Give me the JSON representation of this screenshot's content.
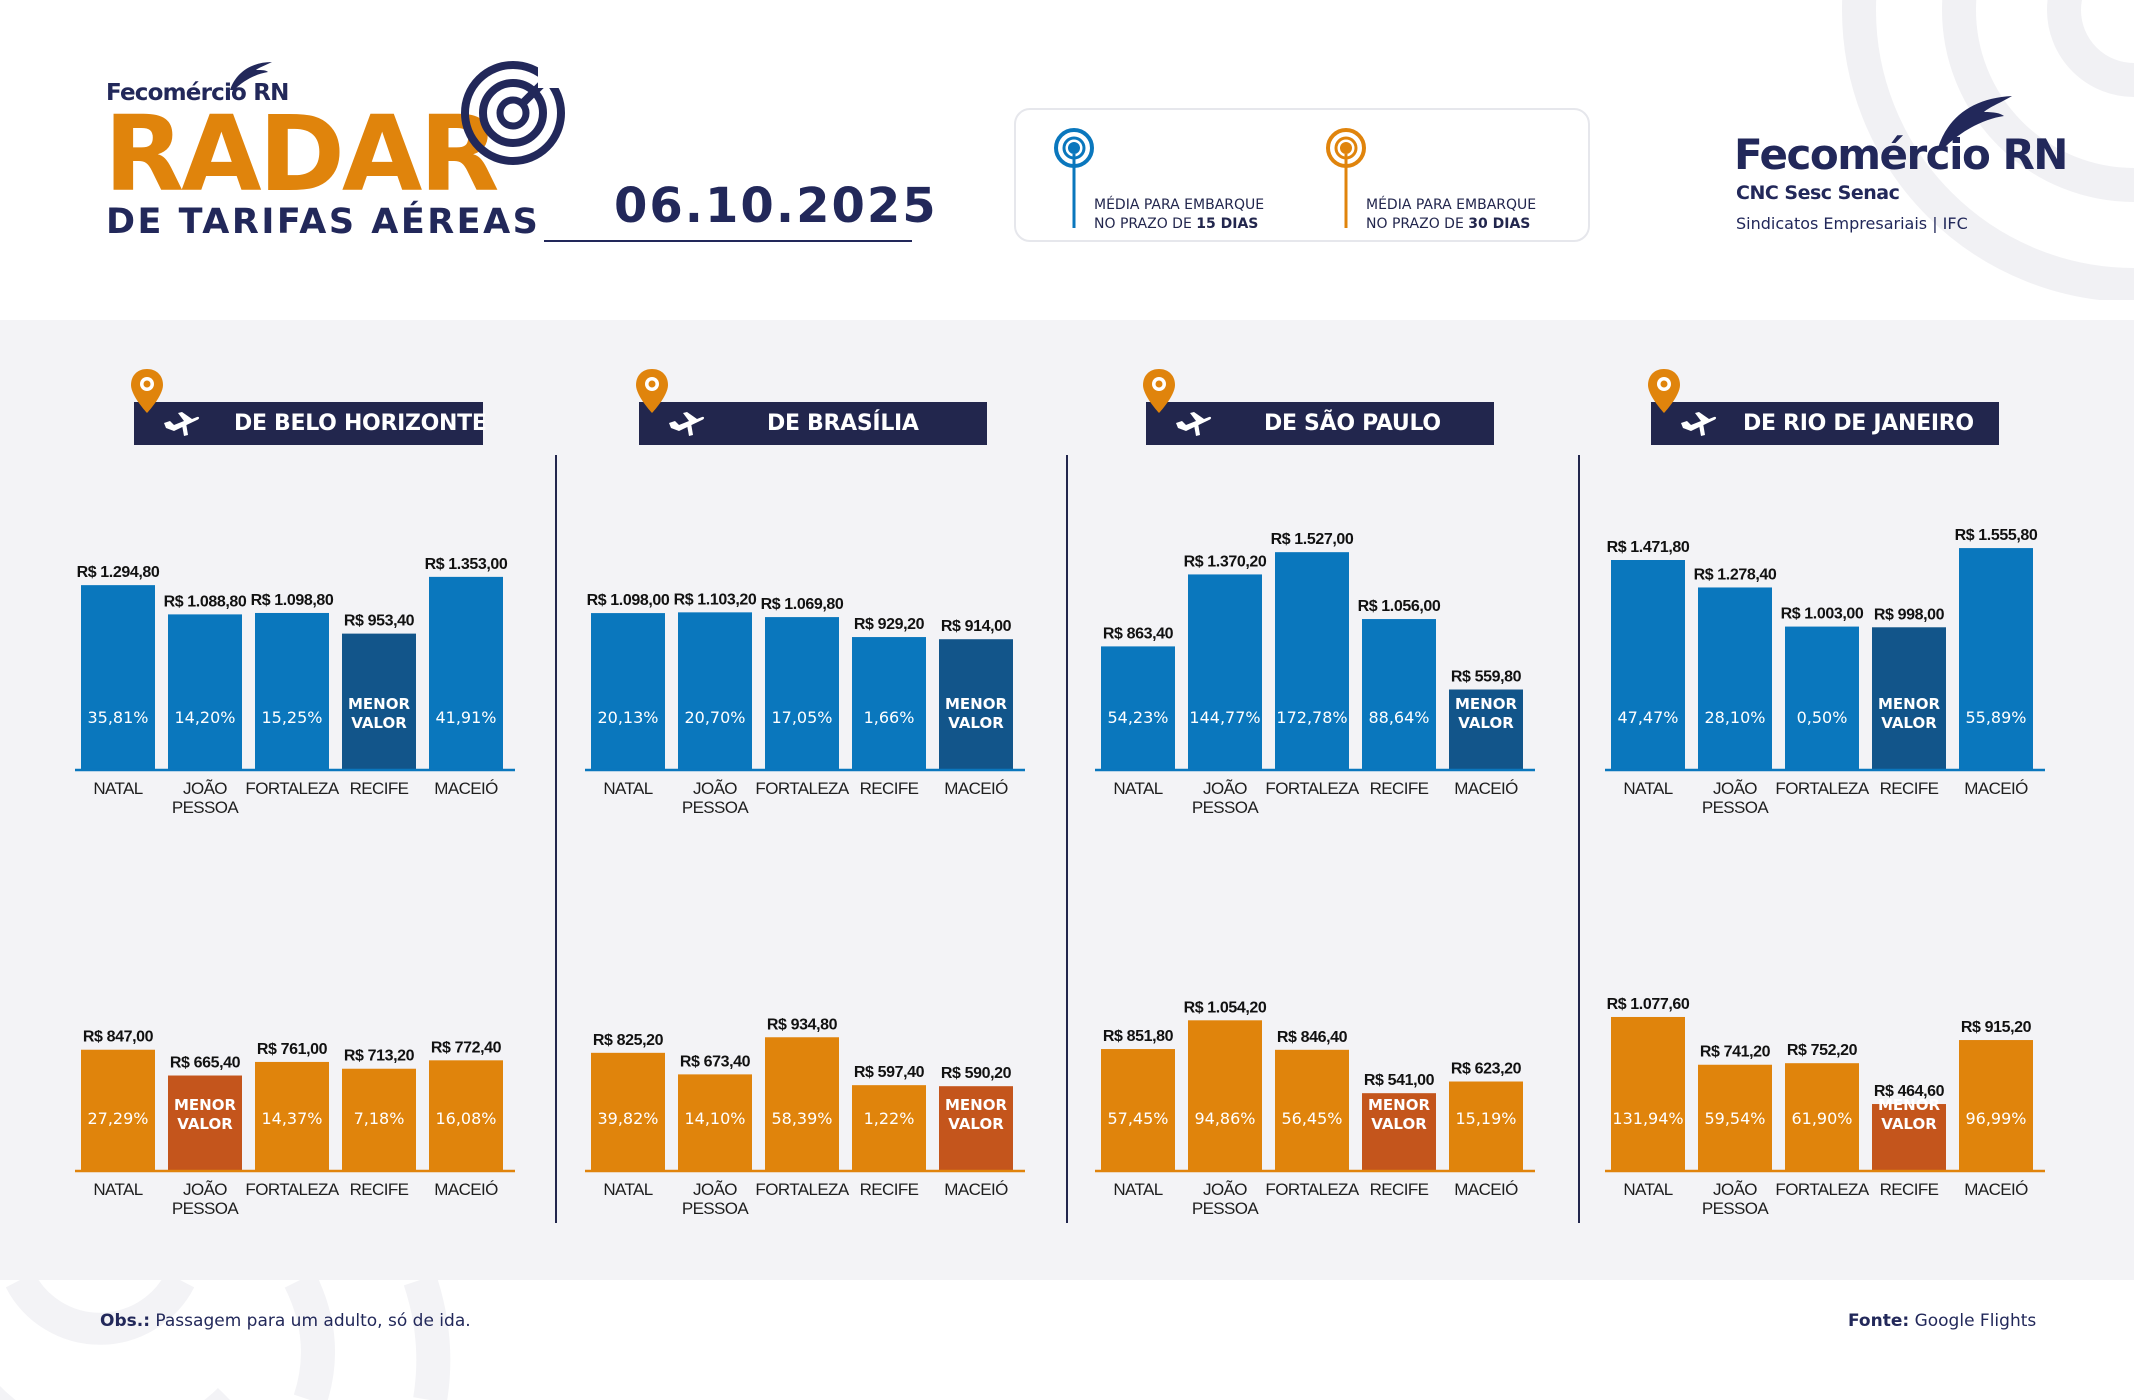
{
  "header": {
    "brand_small": "Fecomércio RN",
    "title": "RADAR",
    "subtitle": "DE TARIFAS AÉREAS",
    "date": "06.10.2025"
  },
  "legend": [
    {
      "line1": "MÉDIA PARA EMBARQUE",
      "line2_prefix": "NO PRAZO DE ",
      "line2_bold": "15 DIAS",
      "color": "#0a77bd",
      "icon": "radar-signal-icon"
    },
    {
      "line1": "MÉDIA PARA EMBARQUE",
      "line2_prefix": "NO PRAZO DE ",
      "line2_bold": "30 DIAS",
      "color": "#e0840c",
      "icon": "radar-signal-icon"
    }
  ],
  "logo_right": {
    "name": "Fecomércio RN",
    "line2": "CNC Sesc Senac",
    "line3": "Sindicatos Empresariais  |  IFC"
  },
  "colors": {
    "navy": "#22264d",
    "blue": "#0a77bd",
    "blue_lowest": "#12558a",
    "orange": "#e0840c",
    "orange_lowest": "#c4551c",
    "panel_bg": "#f3f3f6"
  },
  "menor_valor_label": [
    "MENOR",
    "VALOR"
  ],
  "chart_data": [
    {
      "type": "bar",
      "title": "DE BELO HORIZONTE",
      "categories": [
        "NATAL",
        "JOÃO PESSOA",
        "FORTALEZA",
        "RECIFE",
        "MACEIÓ"
      ],
      "series": [
        {
          "name": "Média para embarque no prazo de 15 dias",
          "values": [
            1294.8,
            1088.8,
            1098.8,
            953.4,
            1353.0
          ],
          "labels": [
            "R$ 1.294,80",
            "R$ 1.088,80",
            "R$ 1.098,80",
            "R$ 953,40",
            "R$ 1.353,00"
          ],
          "pct": [
            "35,81%",
            "14,20%",
            "15,25%",
            null,
            "41,91%"
          ],
          "lowest_index": 3
        },
        {
          "name": "Média para embarque no prazo de 30 dias",
          "values": [
            847.0,
            665.4,
            761.0,
            713.2,
            772.4
          ],
          "labels": [
            "R$ 847,00",
            "R$ 665,40",
            "R$ 761,00",
            "R$ 713,20",
            "R$ 772,40"
          ],
          "pct": [
            "27,29%",
            null,
            "14,37%",
            "7,18%",
            "16,08%"
          ],
          "lowest_index": 1
        }
      ],
      "ylabel": "R$",
      "xlabel": "",
      "ylim": [
        0,
        1600
      ],
      "grid": false
    },
    {
      "type": "bar",
      "title": "DE BRASÍLIA",
      "categories": [
        "NATAL",
        "JOÃO PESSOA",
        "FORTALEZA",
        "RECIFE",
        "MACEIÓ"
      ],
      "series": [
        {
          "name": "Média para embarque no prazo de 15 dias",
          "values": [
            1098.0,
            1103.2,
            1069.8,
            929.2,
            914.0
          ],
          "labels": [
            "R$ 1.098,00",
            "R$ 1.103,20",
            "R$ 1.069,80",
            "R$ 929,20",
            "R$ 914,00"
          ],
          "pct": [
            "20,13%",
            "20,70%",
            "17,05%",
            "1,66%",
            null
          ],
          "lowest_index": 4
        },
        {
          "name": "Média para embarque no prazo de 30 dias",
          "values": [
            825.2,
            673.4,
            934.8,
            597.4,
            590.2
          ],
          "labels": [
            "R$ 825,20",
            "R$ 673,40",
            "R$ 934,80",
            "R$ 597,40",
            "R$ 590,20"
          ],
          "pct": [
            "39,82%",
            "14,10%",
            "58,39%",
            "1,22%",
            null
          ],
          "lowest_index": 4
        }
      ],
      "ylabel": "R$",
      "xlabel": "",
      "ylim": [
        0,
        1600
      ],
      "grid": false
    },
    {
      "type": "bar",
      "title": "DE SÃO PAULO",
      "categories": [
        "NATAL",
        "JOÃO PESSOA",
        "FORTALEZA",
        "RECIFE",
        "MACEIÓ"
      ],
      "series": [
        {
          "name": "Média para embarque no prazo de 15 dias",
          "values": [
            863.4,
            1370.2,
            1527.0,
            1056.0,
            559.8
          ],
          "labels": [
            "R$ 863,40",
            "R$ 1.370,20",
            "R$ 1.527,00",
            "R$ 1.056,00",
            "R$ 559,80"
          ],
          "pct": [
            "54,23%",
            "144,77%",
            "172,78%",
            "88,64%",
            null
          ],
          "lowest_index": 4
        },
        {
          "name": "Média para embarque no prazo de 30 dias",
          "values": [
            851.8,
            1054.2,
            846.4,
            541.0,
            623.2
          ],
          "labels": [
            "R$ 851,80",
            "R$ 1.054,20",
            "R$ 846,40",
            "R$ 541,00",
            "R$ 623,20"
          ],
          "pct": [
            "57,45%",
            "94,86%",
            "56,45%",
            null,
            "15,19%"
          ],
          "lowest_index": 3
        }
      ],
      "ylabel": "R$",
      "xlabel": "",
      "ylim": [
        0,
        1600
      ],
      "grid": false
    },
    {
      "type": "bar",
      "title": "DE RIO DE JANEIRO",
      "categories": [
        "NATAL",
        "JOÃO PESSOA",
        "FORTALEZA",
        "RECIFE",
        "MACEIÓ"
      ],
      "series": [
        {
          "name": "Média para embarque no prazo de 15 dias",
          "values": [
            1471.8,
            1278.4,
            1003.0,
            998.0,
            1555.8
          ],
          "labels": [
            "R$ 1.471,80",
            "R$ 1.278,40",
            "R$ 1.003,00",
            "R$ 998,00",
            "R$ 1.555,80"
          ],
          "pct": [
            "47,47%",
            "28,10%",
            "0,50%",
            null,
            "55,89%"
          ],
          "lowest_index": 3
        },
        {
          "name": "Média para embarque no prazo de 30 dias",
          "values": [
            1077.6,
            741.2,
            752.2,
            464.6,
            915.2
          ],
          "labels": [
            "R$ 1.077,60",
            "R$ 741,20",
            "R$ 752,20",
            "R$ 464,60",
            "R$ 915,20"
          ],
          "pct": [
            "131,94%",
            "59,54%",
            "61,90%",
            null,
            "96,99%"
          ],
          "lowest_index": 3
        }
      ],
      "ylabel": "R$",
      "xlabel": "",
      "ylim": [
        0,
        1600
      ],
      "grid": false
    }
  ],
  "footer": {
    "obs_label": "Obs.:",
    "obs_text": " Passagem para um adulto, só de ida.",
    "source_label": "Fonte:",
    "source_text": " Google Flights"
  }
}
